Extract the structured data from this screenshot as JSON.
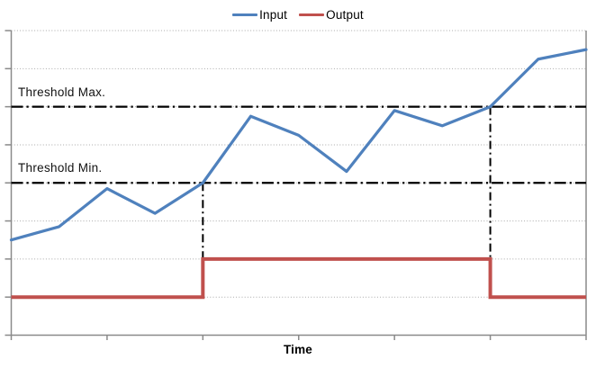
{
  "legend": {
    "items": [
      {
        "label": "Input",
        "color": "#4F81BD"
      },
      {
        "label": "Output",
        "color": "#C0504D"
      }
    ]
  },
  "labels": {
    "x_axis_title": "Time"
  },
  "chart_data": {
    "type": "line",
    "title": "",
    "xlabel": "Time",
    "ylabel": "",
    "x": [
      0,
      1,
      2,
      3,
      4,
      5,
      6,
      7,
      8,
      9,
      10,
      11,
      12
    ],
    "x_range": [
      0,
      12
    ],
    "ylim": [
      0,
      8
    ],
    "y_gridline_step": 1,
    "x_tick_step": 2,
    "grid": "horizontal-dotted",
    "legend_position": "top-center",
    "series": [
      {
        "name": "Input",
        "color": "#4F81BD",
        "style": "line",
        "values": [
          2.5,
          2.85,
          3.85,
          3.2,
          4.0,
          5.75,
          5.25,
          4.3,
          5.9,
          5.5,
          6.0,
          7.25,
          7.5
        ]
      },
      {
        "name": "Output",
        "color": "#C0504D",
        "style": "step",
        "segments": [
          {
            "from_x": 0,
            "to_x": 4,
            "value": 1
          },
          {
            "from_x": 4,
            "to_x": 10,
            "value": 2
          },
          {
            "from_x": 10,
            "to_x": 12,
            "value": 1
          }
        ]
      }
    ],
    "thresholds": [
      {
        "label": "Threshold Max.",
        "value": 6
      },
      {
        "label": "Threshold Min.",
        "value": 4
      }
    ],
    "markers": [
      {
        "x": 4,
        "from_value": 4,
        "to_value": 2
      },
      {
        "x": 10,
        "from_value": 6,
        "to_value": 2
      }
    ],
    "colors": {
      "axis": "#8a8a8a",
      "gridline": "#a8a8a8",
      "threshold_line": "#000000",
      "background": "#ffffff"
    }
  }
}
